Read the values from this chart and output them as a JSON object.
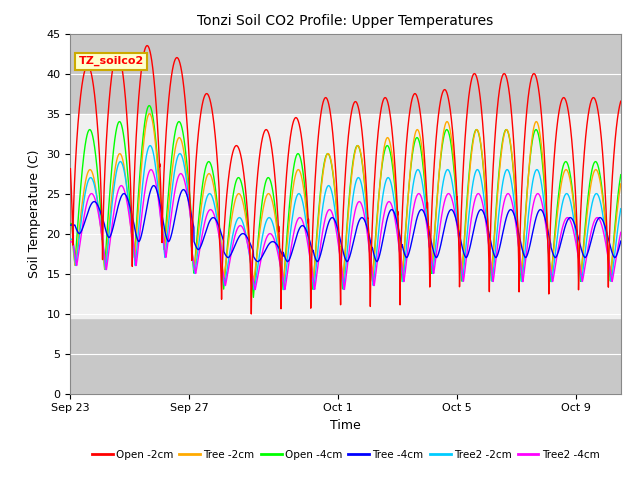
{
  "title": "Tonzi Soil CO2 Profile: Upper Temperatures",
  "xlabel": "Time",
  "ylabel": "Soil Temperature (C)",
  "ylim": [
    0,
    45
  ],
  "yticks": [
    0,
    5,
    10,
    15,
    20,
    25,
    30,
    35,
    40,
    45
  ],
  "n_days": 18.5,
  "plot_bg_color": "#e8e8e8",
  "mid_bg_color": "#f0f0f0",
  "label_box_text": "TZ_soilco2",
  "date_labels": [
    "Sep 23",
    "Sep 27",
    "Oct 1",
    "Oct 5",
    "Oct 9"
  ],
  "date_positions": [
    0,
    4,
    9,
    13,
    17
  ],
  "series_colors": [
    "#ff0000",
    "#ffaa00",
    "#00ff00",
    "#0000ff",
    "#00ccff",
    "#ff00ff"
  ],
  "series_labels": [
    "Open -2cm",
    "Tree -2cm",
    "Open -4cm",
    "Tree -4cm",
    "Tree2 -2cm",
    "Tree2 -4cm"
  ],
  "open2_peaks": [
    41,
    42.5,
    43.5,
    42,
    37.5,
    31,
    33,
    34.5,
    37,
    36.5,
    37,
    37.5,
    38,
    40,
    40,
    40,
    37
  ],
  "open2_mins": [
    17.5,
    16,
    15.5,
    18,
    15.5,
    11,
    9.5,
    10,
    9.5,
    9.8,
    10,
    11,
    12.5,
    12,
    11.5,
    12,
    12
  ],
  "tree2_peaks": [
    28,
    30,
    35,
    32,
    27.5,
    25,
    25,
    28,
    30,
    31,
    32,
    33,
    34,
    33,
    33,
    34,
    28
  ],
  "tree2_mins": [
    16,
    15.5,
    17,
    18,
    15.5,
    14.5,
    14,
    14,
    14,
    14,
    14.5,
    15,
    16,
    15,
    15,
    15,
    15
  ],
  "open4_peaks": [
    33,
    34,
    36,
    34,
    29,
    27,
    27,
    30,
    30,
    31,
    31,
    32,
    33,
    33,
    33,
    33,
    29
  ],
  "open4_mins": [
    16,
    15.5,
    17,
    18,
    15,
    13,
    12,
    13,
    13,
    13,
    14,
    14,
    15,
    14,
    14,
    14,
    14
  ],
  "tree4_peaks": [
    24,
    25,
    26,
    25.5,
    22,
    20,
    19,
    21,
    22,
    22,
    23,
    23,
    23,
    23,
    23,
    23,
    22
  ],
  "tree4_mins": [
    20,
    19.5,
    19,
    19,
    18,
    17,
    16.5,
    16.5,
    16.5,
    16.5,
    16.5,
    17,
    17,
    17,
    17,
    17,
    17
  ],
  "t22_peaks": [
    27,
    29,
    31,
    30,
    25,
    22,
    22,
    25,
    26,
    27,
    27,
    28,
    28,
    28,
    28,
    28,
    25
  ],
  "t22_mins": [
    16,
    15.5,
    16,
    17,
    15,
    13.5,
    13,
    13,
    13,
    13,
    13.5,
    14,
    15,
    14,
    14,
    14,
    14
  ],
  "t24_peaks": [
    25,
    26,
    28,
    27.5,
    23,
    21,
    20,
    22,
    23,
    24,
    24,
    25,
    25,
    25,
    25,
    25,
    22
  ],
  "t24_mins": [
    16,
    15.5,
    16,
    17,
    15,
    13.5,
    13,
    13,
    13,
    13,
    13.5,
    14,
    15,
    14,
    14,
    14,
    14
  ]
}
